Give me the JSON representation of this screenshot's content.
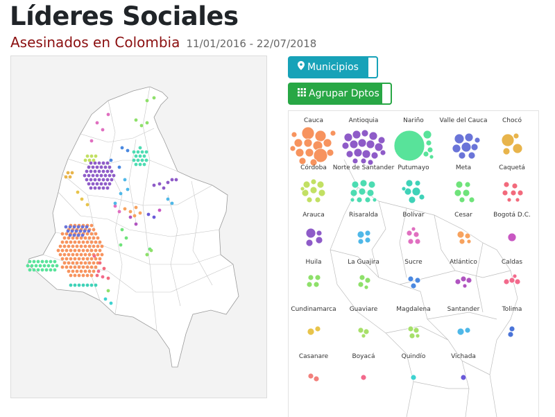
{
  "header": {
    "title": "Líderes Sociales",
    "subtitle": "Asesinados en Colombia",
    "date_range": "11/01/2016 - 22/07/2018"
  },
  "controls": {
    "municipios_label": "Municipios",
    "municipios_icon": "map-marker-icon",
    "agrupar_label": "Agrupar Dptos",
    "agrupar_icon": "grid-icon"
  },
  "colors": {
    "municipios_button": "#17a2b8",
    "agrupar_button": "#28a745",
    "subtitle": "#8b0f10"
  },
  "departments": [
    {
      "name": "Cauca",
      "color": "#f7935e"
    },
    {
      "name": "Antioquia",
      "color": "#8e5bc8"
    },
    {
      "name": "Nariño",
      "color": "#58e39a"
    },
    {
      "name": "Valle del Cauca",
      "color": "#6a74d8"
    },
    {
      "name": "Chocó",
      "color": "#e8b44b"
    },
    {
      "name": "Córdoba",
      "color": "#c2e063"
    },
    {
      "name": "Norte de Santander",
      "color": "#4cdcb2"
    },
    {
      "name": "Putumayo",
      "color": "#3fd2b8"
    },
    {
      "name": "Meta",
      "color": "#6fe37a"
    },
    {
      "name": "Caquetá",
      "color": "#f26a7c"
    },
    {
      "name": "Arauca",
      "color": "#8e5bc8"
    },
    {
      "name": "Risaralda",
      "color": "#4fb8e8"
    },
    {
      "name": "Bolívar",
      "color": "#e06fc0"
    },
    {
      "name": "Cesar",
      "color": "#f7a25e"
    },
    {
      "name": "Bogotá D.C.",
      "color": "#c857c2"
    },
    {
      "name": "Huila",
      "color": "#8ee06a"
    },
    {
      "name": "La Guajira",
      "color": "#8ee06a"
    },
    {
      "name": "Sucre",
      "color": "#4a88e0"
    },
    {
      "name": "Atlántico",
      "color": "#b054c0"
    },
    {
      "name": "Caldas",
      "color": "#f26a8c"
    },
    {
      "name": "Cundinamarca",
      "color": "#e8c44b"
    },
    {
      "name": "Guaviare",
      "color": "#a8e06a"
    },
    {
      "name": "Magdalena",
      "color": "#a6e06a"
    },
    {
      "name": "Santander",
      "color": "#4fb8e8"
    },
    {
      "name": "Tolima",
      "color": "#4a74d8"
    },
    {
      "name": "Casanare",
      "color": "#f2807c"
    },
    {
      "name": "Boyacá",
      "color": "#f26a8c"
    },
    {
      "name": "Quindío",
      "color": "#3fd2d0"
    },
    {
      "name": "Vichada",
      "color": "#6a5ad8"
    }
  ]
}
